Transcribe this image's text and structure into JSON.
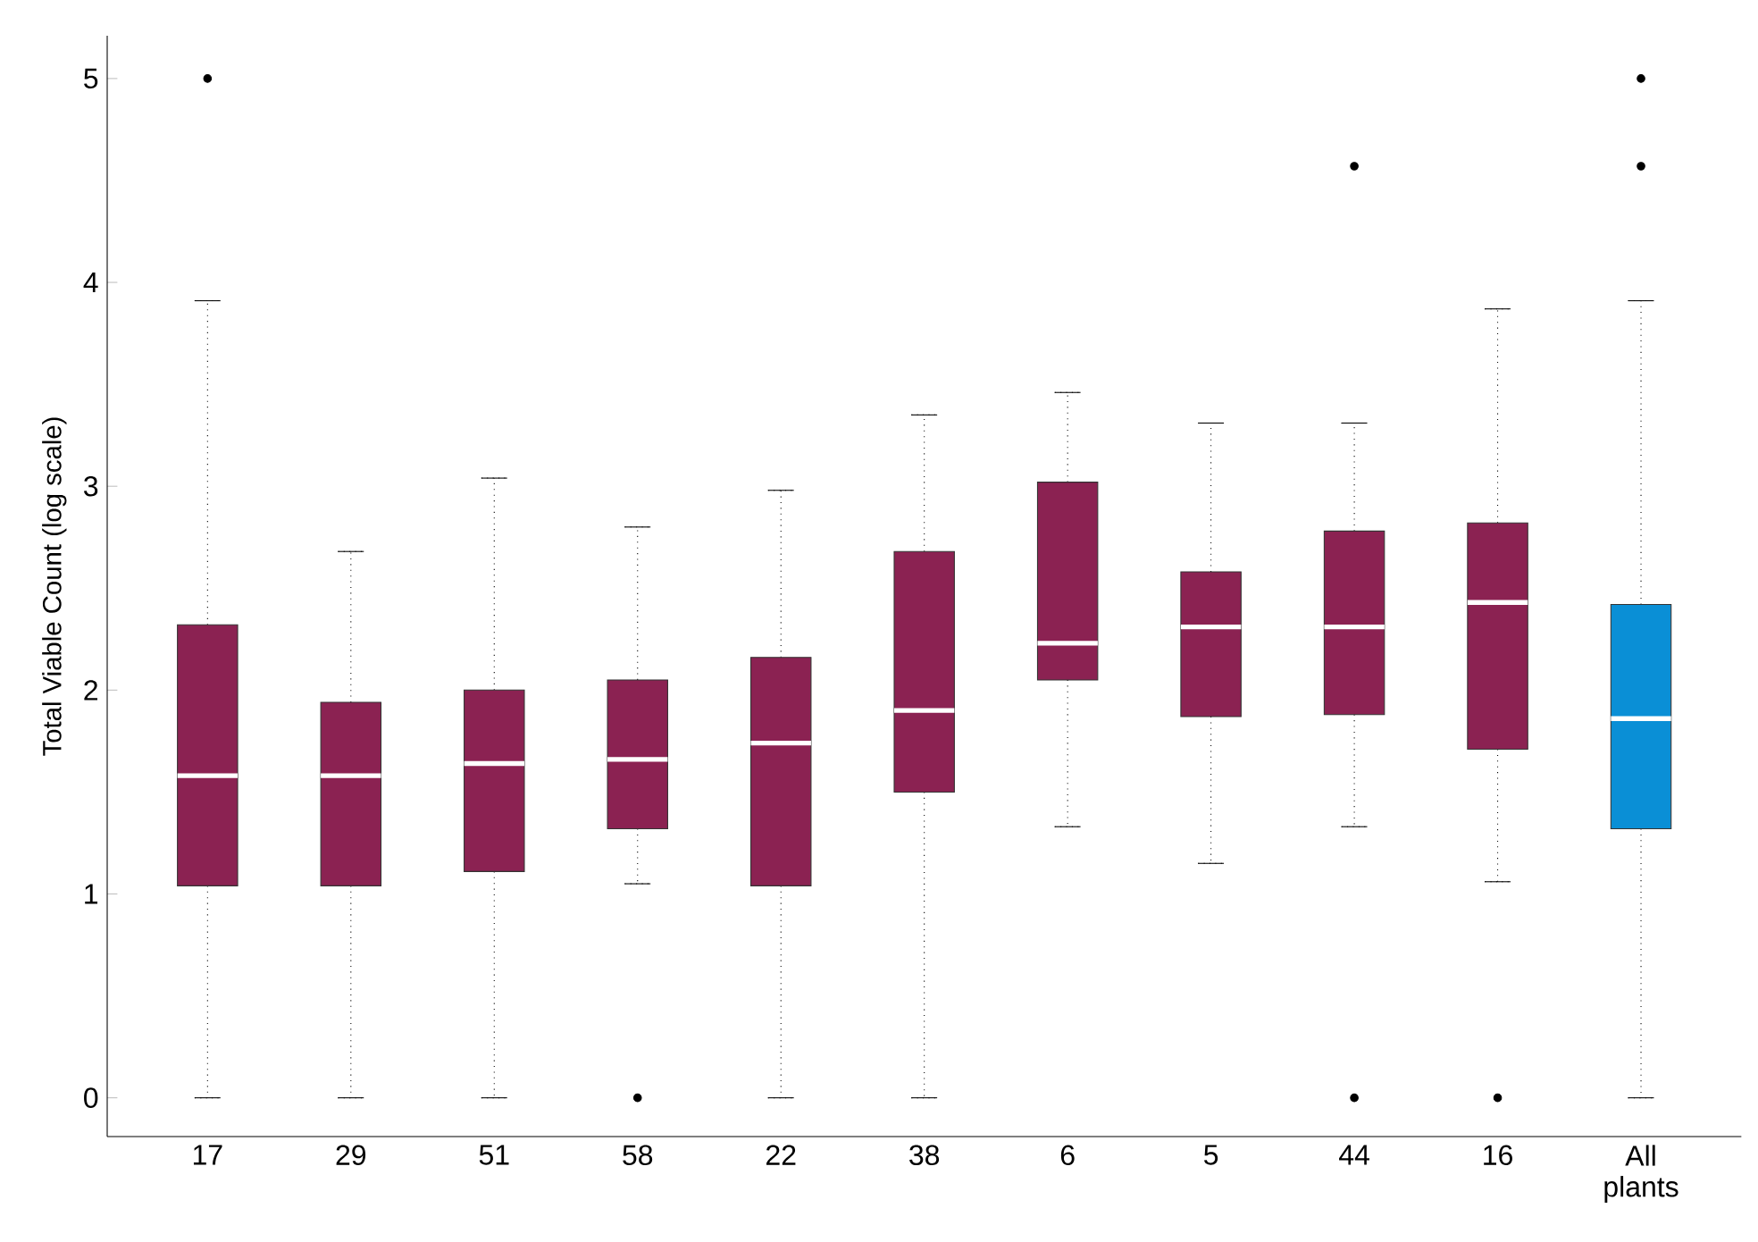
{
  "chart_data": {
    "type": "box",
    "ylabel": "Total Viable Count (log scale)",
    "categories": [
      "17",
      "29",
      "51",
      "58",
      "22",
      "38",
      "6",
      "5",
      "44",
      "16",
      "All plants"
    ],
    "colors": [
      "#8b2252",
      "#8b2252",
      "#8b2252",
      "#8b2252",
      "#8b2252",
      "#8b2252",
      "#8b2252",
      "#8b2252",
      "#8b2252",
      "#8b2252",
      "#0a8fd6"
    ],
    "boxes": [
      {
        "low": 0,
        "q1": 1.04,
        "median": 1.58,
        "q3": 2.32,
        "high": 3.91,
        "outliers": [
          5.0
        ]
      },
      {
        "low": 0,
        "q1": 1.04,
        "median": 1.58,
        "q3": 1.94,
        "high": 2.68
      },
      {
        "low": 0,
        "q1": 1.11,
        "median": 1.64,
        "q3": 2.0,
        "high": 3.04
      },
      {
        "low": 1.05,
        "q1": 1.32,
        "median": 1.66,
        "q3": 2.05,
        "high": 2.8,
        "outliers": [
          0
        ]
      },
      {
        "low": 0,
        "q1": 1.04,
        "median": 1.74,
        "q3": 2.16,
        "high": 2.98
      },
      {
        "low": 0,
        "q1": 1.5,
        "median": 1.9,
        "q3": 2.68,
        "high": 3.35
      },
      {
        "low": 1.33,
        "q1": 2.05,
        "median": 2.23,
        "q3": 3.02,
        "high": 3.46
      },
      {
        "low": 1.15,
        "q1": 1.87,
        "median": 2.31,
        "q3": 2.58,
        "high": 3.31
      },
      {
        "low": 1.33,
        "q1": 1.88,
        "median": 2.31,
        "q3": 2.78,
        "high": 3.31,
        "outliers": [
          4.57,
          0
        ]
      },
      {
        "low": 1.06,
        "q1": 1.71,
        "median": 2.43,
        "q3": 2.82,
        "high": 3.87,
        "outliers": [
          0
        ]
      },
      {
        "low": 0,
        "q1": 1.32,
        "median": 1.86,
        "q3": 2.42,
        "high": 3.91,
        "outliers": [
          4.57,
          5.0
        ]
      }
    ],
    "ylim": [
      -0.19,
      5.21
    ],
    "yticks": [
      0,
      1,
      2,
      3,
      4,
      5
    ]
  }
}
